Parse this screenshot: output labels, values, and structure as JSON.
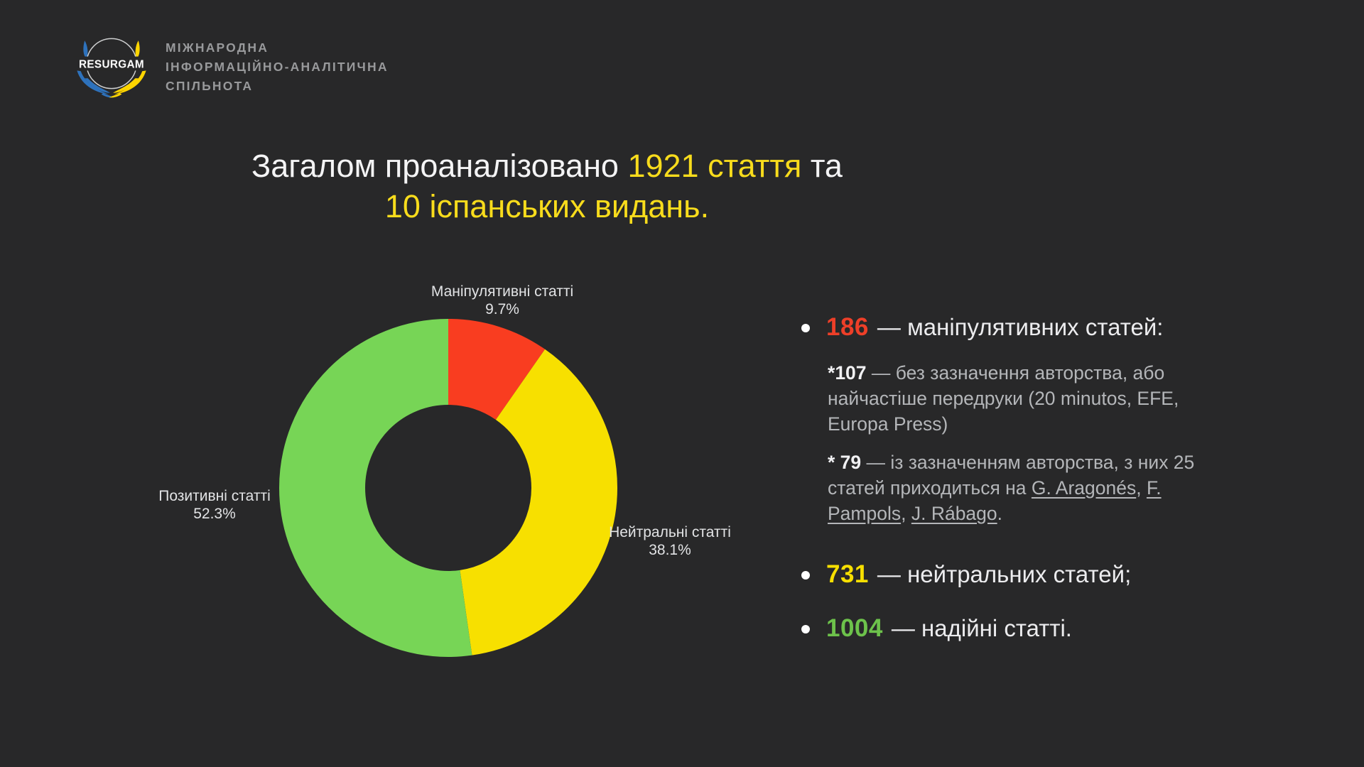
{
  "page": {
    "background": "#282829"
  },
  "logo": {
    "brand": "RESURGAM",
    "org_lines": [
      "МІЖНАРОДНА",
      "ІНФОРМАЦІЙНО-АНАЛІТИЧНА",
      "СПІЛЬНОТА"
    ],
    "blue": "#2e72bc",
    "yellow": "#ffd500",
    "ring_color": "#cfd0d1"
  },
  "title": {
    "part1": "Загалом проаналізовано ",
    "part2": "1921 стаття",
    "part3": " та",
    "line2": "10 іспанських видань.",
    "highlight_color": "#f8dc1c"
  },
  "chart_data": {
    "type": "pie",
    "donut": true,
    "title": "",
    "categories": [
      "Маніпулятивні статті",
      "Нейтральні статті",
      "Позитивні статті"
    ],
    "values": [
      9.7,
      38.1,
      52.3
    ],
    "counts": [
      186,
      731,
      1004
    ],
    "total_articles": 1921,
    "colors": [
      "#f93d20",
      "#f7e000",
      "#77d556"
    ],
    "start_angle_deg": 0,
    "direction": "clockwise",
    "labels": [
      {
        "name": "Маніпулятивні статті",
        "pct": "9.7%"
      },
      {
        "name": "Нейтральні статті",
        "pct": "38.1%"
      },
      {
        "name": "Позитивні статті",
        "pct": "52.3%"
      }
    ]
  },
  "stats": {
    "bullet1": {
      "num": "186",
      "num_color": "#ee3f28",
      "text": "— маніпулятивних статей:"
    },
    "sub1": {
      "bold": "*107",
      "text": " — без зазначення авторства, або найчастіше передруки (20 minutos, EFE, Europa Press)"
    },
    "sub2": {
      "bold": "* 79",
      "text1": " — із зазначенням авторства, з них 25 статей приходиться на ",
      "link1": "G. Aragonés",
      "sep1": ", ",
      "link2": "F. Pampols",
      "sep2": ", ",
      "link3": "J. Rábago",
      "end": "."
    },
    "bullet2": {
      "num": "731",
      "num_color": "#f7df00",
      "text": "— нейтральних статей;"
    },
    "bullet3": {
      "num": "1004",
      "num_color": "#6dc24b",
      "text": "— надійні статті."
    }
  }
}
